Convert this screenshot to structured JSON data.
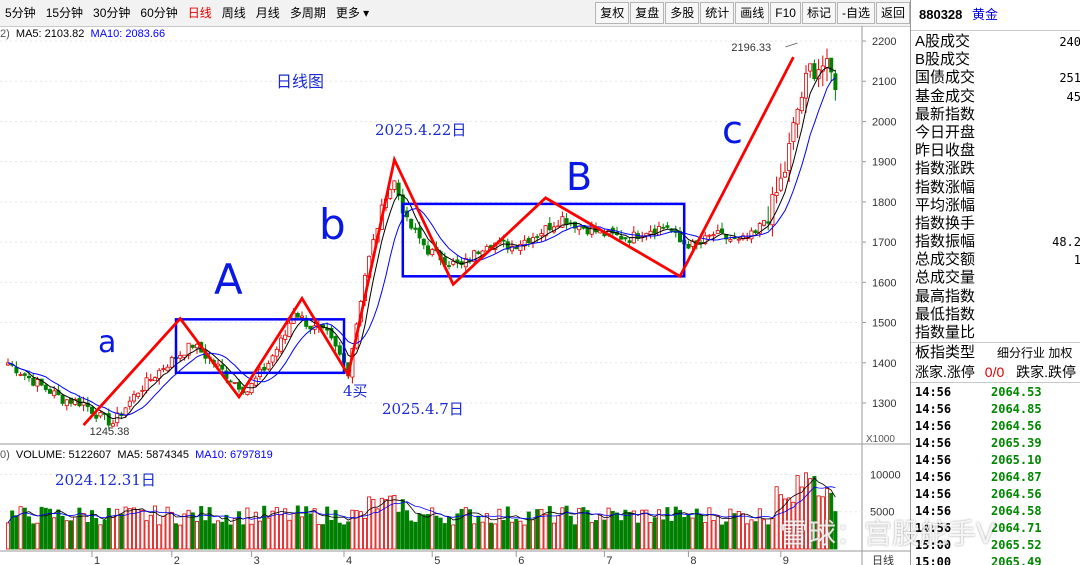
{
  "toolbar": {
    "period_tabs": [
      "5分钟",
      "15分钟",
      "30分钟",
      "60分钟",
      "日线",
      "周线",
      "月线",
      "多周期",
      "更多"
    ],
    "active_tab": 4,
    "buttons": [
      "复权",
      "复盘",
      "多股",
      "统计",
      "画线",
      "F10",
      "标记",
      "-自选",
      "返回"
    ]
  },
  "ma_legend": {
    "ma5": "MA5: 2103.82",
    "ma10": "MA10: 2083.66"
  },
  "vol_legend": {
    "volume": "VOLUME: 5122607",
    "ma5": "MA5: 5874345",
    "ma10": "MA10: 6797819"
  },
  "price_axis": {
    "ticks": [
      "2200",
      "2100",
      "2000",
      "1900",
      "1800",
      "1700",
      "1600",
      "1500",
      "1400",
      "1300"
    ],
    "ylim": [
      1245,
      2200
    ],
    "multiplier": "X1000"
  },
  "volume_axis": {
    "ticks": [
      "10000",
      "5000"
    ]
  },
  "x_axis": {
    "months": [
      "1",
      "2",
      "3",
      "4",
      "5",
      "6",
      "7",
      "8",
      "9"
    ],
    "period_label": "日线"
  },
  "price_labels": {
    "high": "2196.33",
    "low": "1245.38"
  },
  "annotations": {
    "title": "日线图",
    "date_top": "2025.4.22日",
    "date_mid": "2025.4.7日",
    "date_left": "2024.12.31日",
    "buy": "4买",
    "wave_a": "a",
    "wave_A": "A",
    "wave_b": "b",
    "wave_B": "B",
    "wave_c": "c"
  },
  "right_panel": {
    "code": "880328",
    "name": "黄金",
    "stats": [
      {
        "label": "A股成交",
        "value": "240"
      },
      {
        "label": "B股成交",
        "value": ""
      },
      {
        "label": "国债成交",
        "value": "251"
      },
      {
        "label": "基金成交",
        "value": "45"
      },
      {
        "label": "最新指数",
        "value": ""
      },
      {
        "label": "今日开盘",
        "value": ""
      },
      {
        "label": "昨日收盘",
        "value": ""
      },
      {
        "label": "指数涨跌",
        "value": ""
      },
      {
        "label": "指数涨幅",
        "value": ""
      },
      {
        "label": "平均涨幅",
        "value": ""
      },
      {
        "label": "指数换手",
        "value": ""
      },
      {
        "label": "指数振幅",
        "value": "48.2"
      },
      {
        "label": "总成交额",
        "value": "1"
      },
      {
        "label": "总成交量",
        "value": ""
      },
      {
        "label": "最高指数",
        "value": ""
      },
      {
        "label": "最低指数",
        "value": ""
      },
      {
        "label": "指数量比",
        "value": ""
      }
    ],
    "board_type_label": "板指类型",
    "board_type_value": "细分行业 加权",
    "updown_label": "涨家.涨停",
    "updown_value": "0/0",
    "down_label": "跌家.跌停",
    "ticks": [
      {
        "time": "14:56",
        "price": "2064.53"
      },
      {
        "time": "14:56",
        "price": "2064.85"
      },
      {
        "time": "14:56",
        "price": "2064.56"
      },
      {
        "time": "14:56",
        "price": "2065.39"
      },
      {
        "time": "14:56",
        "price": "2065.10"
      },
      {
        "time": "14:56",
        "price": "2064.87"
      },
      {
        "time": "14:56",
        "price": "2064.56"
      },
      {
        "time": "14:56",
        "price": "2064.58"
      },
      {
        "time": "14:56",
        "price": "2064.71"
      },
      {
        "time": "15:00",
        "price": "2065.52"
      },
      {
        "time": "15:00",
        "price": "2065.49"
      }
    ]
  },
  "watermark": "雪球：宫股舵手V",
  "colors": {
    "up": "#e00000",
    "down": "#008000",
    "ma5": "#000000",
    "ma10": "#0000ff",
    "annotation": "#1b2bd6",
    "wave_line": "#ff0000",
    "box": "#0000ff"
  },
  "chart_data": {
    "type": "candlestick",
    "title": "",
    "anchors": [
      {
        "x": 0,
        "y": 1400
      },
      {
        "x": 6,
        "y": 1355
      },
      {
        "x": 13,
        "y": 1310
      },
      {
        "x": 18,
        "y": 1300
      },
      {
        "x": 22,
        "y": 1265
      },
      {
        "x": 25,
        "y": 1250
      },
      {
        "x": 31,
        "y": 1330
      },
      {
        "x": 37,
        "y": 1390
      },
      {
        "x": 42,
        "y": 1430
      },
      {
        "x": 44,
        "y": 1445
      },
      {
        "x": 49,
        "y": 1400
      },
      {
        "x": 53,
        "y": 1360
      },
      {
        "x": 57,
        "y": 1330
      },
      {
        "x": 62,
        "y": 1400
      },
      {
        "x": 66,
        "y": 1470
      },
      {
        "x": 68,
        "y": 1530
      },
      {
        "x": 72,
        "y": 1490
      },
      {
        "x": 76,
        "y": 1470
      },
      {
        "x": 80,
        "y": 1400
      },
      {
        "x": 81,
        "y": 1380
      },
      {
        "x": 85,
        "y": 1620
      },
      {
        "x": 90,
        "y": 1820
      },
      {
        "x": 92,
        "y": 1850
      },
      {
        "x": 95,
        "y": 1750
      },
      {
        "x": 100,
        "y": 1680
      },
      {
        "x": 105,
        "y": 1650
      },
      {
        "x": 108,
        "y": 1640
      },
      {
        "x": 114,
        "y": 1700
      },
      {
        "x": 120,
        "y": 1690
      },
      {
        "x": 126,
        "y": 1720
      },
      {
        "x": 132,
        "y": 1760
      },
      {
        "x": 136,
        "y": 1740
      },
      {
        "x": 142,
        "y": 1720
      },
      {
        "x": 148,
        "y": 1710
      },
      {
        "x": 152,
        "y": 1730
      },
      {
        "x": 157,
        "y": 1740
      },
      {
        "x": 160,
        "y": 1700
      },
      {
        "x": 164,
        "y": 1690
      },
      {
        "x": 168,
        "y": 1720
      },
      {
        "x": 174,
        "y": 1700
      },
      {
        "x": 178,
        "y": 1720
      },
      {
        "x": 182,
        "y": 1790
      },
      {
        "x": 185,
        "y": 1880
      },
      {
        "x": 188,
        "y": 2030
      },
      {
        "x": 191,
        "y": 2130
      },
      {
        "x": 194,
        "y": 2140
      },
      {
        "x": 197,
        "y": 2100
      }
    ],
    "waves": [
      {
        "x": 18,
        "y": 1245
      },
      {
        "x": 41,
        "y": 1510
      },
      {
        "x": 55,
        "y": 1315
      },
      {
        "x": 70,
        "y": 1560
      },
      {
        "x": 81,
        "y": 1370
      },
      {
        "x": 92,
        "y": 1905
      },
      {
        "x": 106,
        "y": 1595
      },
      {
        "x": 128,
        "y": 1810
      },
      {
        "x": 160,
        "y": 1615
      },
      {
        "x": 187,
        "y": 2160
      }
    ],
    "boxes": [
      {
        "x0": 40,
        "x1": 80,
        "y0": 1375,
        "y1": 1508
      },
      {
        "x0": 94,
        "x1": 161,
        "y0": 1615,
        "y1": 1795
      }
    ],
    "volume": {
      "base": 3200,
      "peak_region": [
        183,
        196
      ],
      "max": 10500
    }
  }
}
